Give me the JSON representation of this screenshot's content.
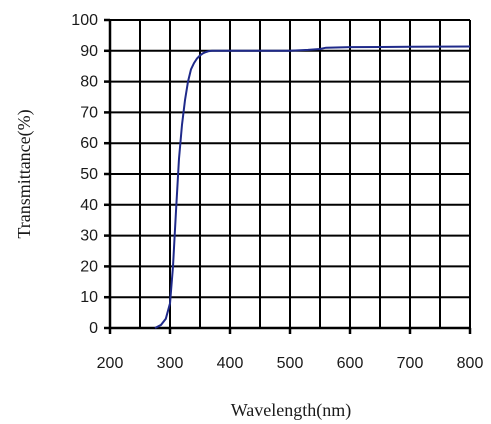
{
  "chart_data": {
    "type": "line",
    "title": "",
    "xlabel": "Wavelength(nm)",
    "ylabel": "Transmittance(%)",
    "xlim": [
      200,
      800
    ],
    "ylim": [
      0,
      100
    ],
    "x_ticks": [
      200,
      300,
      400,
      500,
      600,
      700,
      800
    ],
    "y_ticks": [
      0,
      10,
      20,
      30,
      40,
      50,
      60,
      70,
      80,
      90,
      100
    ],
    "x_tick_labels": [
      "200",
      "300",
      "400",
      "500",
      "600",
      "700",
      "800"
    ],
    "y_tick_labels": [
      "0",
      "10",
      "20",
      "30",
      "40",
      "50",
      "60",
      "70",
      "80",
      "90",
      "100"
    ],
    "grid": true,
    "series_color": "#1f2a8a",
    "series": [
      {
        "x": [
          275,
          285,
          293,
          300,
          305,
          310,
          315,
          320,
          325,
          330,
          335,
          340,
          345,
          350,
          355,
          360,
          365,
          370,
          380,
          400,
          450,
          500,
          530,
          550,
          560,
          600,
          700,
          800
        ],
        "values": [
          0,
          1,
          3,
          8,
          20,
          38,
          55,
          66,
          74,
          80,
          84,
          86,
          87.5,
          88.5,
          89.2,
          89.6,
          89.9,
          90,
          90,
          90,
          90,
          90,
          90.3,
          90.6,
          91,
          91.2,
          91.3,
          91.4
        ]
      }
    ]
  }
}
